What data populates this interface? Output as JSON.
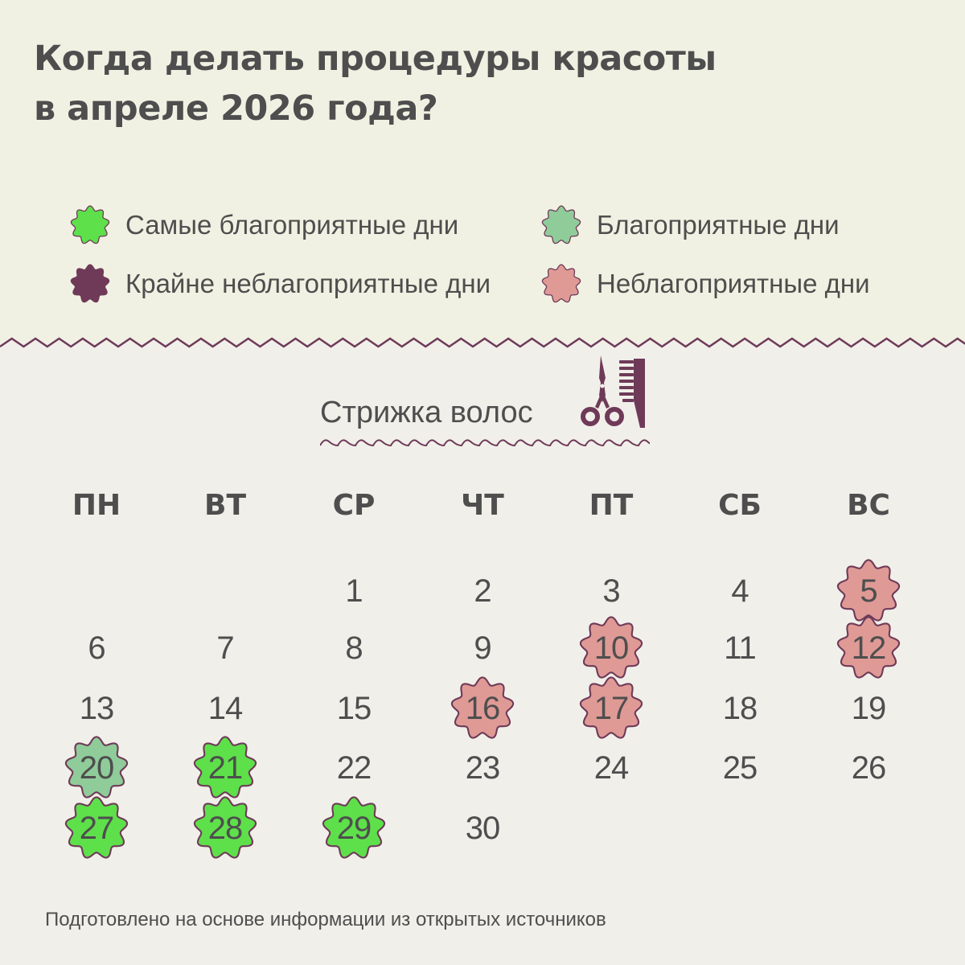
{
  "title": {
    "line1": "Когда делать процедуры красоты",
    "line2": "в апреле 2026 года?"
  },
  "legend": [
    {
      "key": "best",
      "label": "Самые благоприятные дни",
      "color": "#5ee04a",
      "icon": "flower-badge-icon"
    },
    {
      "key": "good",
      "label": "Благоприятные дни",
      "color": "#8fcc9a",
      "icon": "flower-badge-icon"
    },
    {
      "key": "worst",
      "label": "Крайне неблагоприятные дни",
      "color": "#6e3a58",
      "icon": "flower-badge-icon"
    },
    {
      "key": "bad",
      "label": "Неблагоприятные дни",
      "color": "#df9a96",
      "icon": "flower-badge-icon"
    }
  ],
  "colors": {
    "outline": "#6e3a58",
    "text": "#4e4e4e",
    "top_bg": "#f1f1e3",
    "bottom_bg": "#f1efe9"
  },
  "section": {
    "title": "Стрижка волос",
    "icon": "scissors-comb-icon"
  },
  "calendar": {
    "month": "апрель 2026",
    "weekdays": [
      "ПН",
      "ВТ",
      "СР",
      "ЧТ",
      "ПТ",
      "СБ",
      "ВС"
    ],
    "first_weekday_index": 2,
    "days_in_month": 30,
    "marked_days": {
      "5": "bad",
      "10": "bad",
      "12": "bad",
      "16": "bad",
      "17": "bad",
      "20": "good",
      "21": "best",
      "27": "best",
      "28": "best",
      "29": "best"
    }
  },
  "footer": "Подготовлено на основе информации из открытых источников"
}
